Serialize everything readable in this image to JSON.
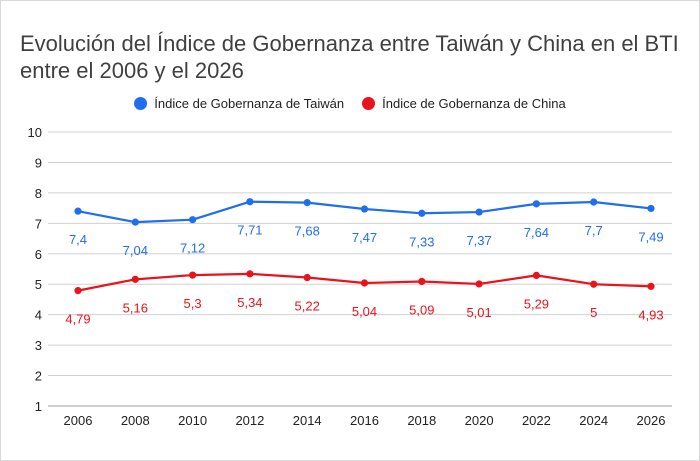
{
  "title": "Evolución del Índice de Gobernanza entre Taiwán y China en el BTI entre el 2006 y el 2026",
  "chart_data": {
    "type": "line",
    "title": "Evolución del Índice de Gobernanza entre Taiwán y China en el BTI entre el 2006 y el 2026",
    "x": [
      "2006",
      "2008",
      "2010",
      "2012",
      "2014",
      "2016",
      "2018",
      "2020",
      "2022",
      "2024",
      "2026"
    ],
    "ylim": [
      1,
      10
    ],
    "yticks": [
      1,
      2,
      3,
      4,
      5,
      6,
      7,
      8,
      9,
      10
    ],
    "grid": true,
    "legend": "top",
    "series": [
      {
        "name": "Índice de Gobernanza de Taiwán",
        "color": "#1f6ef0",
        "values": [
          7.4,
          7.04,
          7.12,
          7.71,
          7.68,
          7.47,
          7.33,
          7.37,
          7.64,
          7.7,
          7.49
        ],
        "labels": [
          "7,4",
          "7,04",
          "7,12",
          "7,71",
          "7,68",
          "7,47",
          "7,33",
          "7,37",
          "7,64",
          "7,7",
          "7,49"
        ]
      },
      {
        "name": "Índice de Gobernanza de China",
        "color": "#e8131b",
        "values": [
          4.79,
          5.16,
          5.3,
          5.34,
          5.22,
          5.04,
          5.09,
          5.01,
          5.29,
          5.0,
          4.93
        ],
        "labels": [
          "4,79",
          "5,16",
          "5,3",
          "5,34",
          "5,22",
          "5,04",
          "5,09",
          "5,01",
          "5,29",
          "5",
          "4,93"
        ]
      }
    ]
  }
}
